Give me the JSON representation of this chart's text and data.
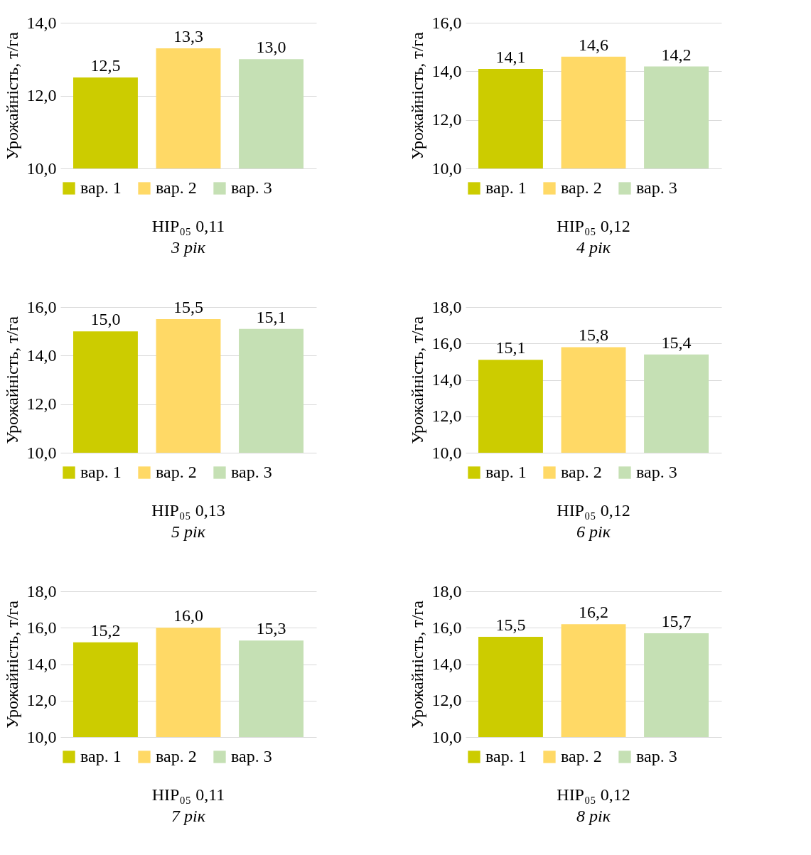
{
  "chart_data": [
    {
      "type": "bar",
      "title": "НІР₀₅ 0,11",
      "subtitle": "3 рік",
      "ylabel": "Урожайність, т/га",
      "categories": [
        null
      ],
      "ylim": [
        10,
        14
      ],
      "yticks": [
        {
          "value": 10,
          "label": "10,0"
        },
        {
          "value": 12,
          "label": "12,0"
        },
        {
          "value": 14,
          "label": "14,0"
        }
      ],
      "grid": "y",
      "legend": "bottom",
      "series": [
        {
          "name": "вар. 1",
          "color": "#cccc00",
          "values": [
            12.5
          ],
          "value_labels": [
            "12,5"
          ]
        },
        {
          "name": "вар. 2",
          "color": "#ffd966",
          "values": [
            13.3
          ],
          "value_labels": [
            "13,3"
          ]
        },
        {
          "name": "вар. 3",
          "color": "#c5e0b4",
          "values": [
            13.0
          ],
          "value_labels": [
            "13,0"
          ]
        }
      ]
    },
    {
      "type": "bar",
      "title": "НІР₀₅ 0,12",
      "subtitle": "4 рік",
      "ylabel": "Урожайність, т/га",
      "categories": [
        null
      ],
      "ylim": [
        10,
        16
      ],
      "yticks": [
        {
          "value": 10,
          "label": "10,0"
        },
        {
          "value": 12,
          "label": "12,0"
        },
        {
          "value": 14,
          "label": "14,0"
        },
        {
          "value": 16,
          "label": "16,0"
        }
      ],
      "grid": "y",
      "legend": "bottom",
      "series": [
        {
          "name": "вар. 1",
          "color": "#cccc00",
          "values": [
            14.1
          ],
          "value_labels": [
            "14,1"
          ]
        },
        {
          "name": "вар. 2",
          "color": "#ffd966",
          "values": [
            14.6
          ],
          "value_labels": [
            "14,6"
          ]
        },
        {
          "name": "вар. 3",
          "color": "#c5e0b4",
          "values": [
            14.2
          ],
          "value_labels": [
            "14,2"
          ]
        }
      ]
    },
    {
      "type": "bar",
      "title": "НІР₀₅ 0,13",
      "subtitle": "5 рік",
      "ylabel": "Урожайність, т/га",
      "categories": [
        null
      ],
      "ylim": [
        10,
        16
      ],
      "yticks": [
        {
          "value": 10,
          "label": "10,0"
        },
        {
          "value": 12,
          "label": "12,0"
        },
        {
          "value": 14,
          "label": "14,0"
        },
        {
          "value": 16,
          "label": "16,0"
        }
      ],
      "grid": "y",
      "legend": "bottom",
      "series": [
        {
          "name": "вар. 1",
          "color": "#cccc00",
          "values": [
            15.0
          ],
          "value_labels": [
            "15,0"
          ]
        },
        {
          "name": "вар. 2",
          "color": "#ffd966",
          "values": [
            15.5
          ],
          "value_labels": [
            "15,5"
          ]
        },
        {
          "name": "вар. 3",
          "color": "#c5e0b4",
          "values": [
            15.1
          ],
          "value_labels": [
            "15,1"
          ]
        }
      ]
    },
    {
      "type": "bar",
      "title": "НІР₀₅ 0,12",
      "subtitle": "6 рік",
      "ylabel": "Урожайність, т/га",
      "categories": [
        null
      ],
      "ylim": [
        10,
        18
      ],
      "yticks": [
        {
          "value": 10,
          "label": "10,0"
        },
        {
          "value": 12,
          "label": "12,0"
        },
        {
          "value": 14,
          "label": "14,0"
        },
        {
          "value": 16,
          "label": "16,0"
        },
        {
          "value": 18,
          "label": "18,0"
        }
      ],
      "grid": "y",
      "legend": "bottom",
      "series": [
        {
          "name": "вар. 1",
          "color": "#cccc00",
          "values": [
            15.1
          ],
          "value_labels": [
            "15,1"
          ]
        },
        {
          "name": "вар. 2",
          "color": "#ffd966",
          "values": [
            15.8
          ],
          "value_labels": [
            "15,8"
          ]
        },
        {
          "name": "вар. 3",
          "color": "#c5e0b4",
          "values": [
            15.4
          ],
          "value_labels": [
            "15,4"
          ]
        }
      ]
    },
    {
      "type": "bar",
      "title": "НІР₀₅ 0,11",
      "subtitle": "7 рік",
      "ylabel": "Урожайність, т/га",
      "categories": [
        null
      ],
      "ylim": [
        10,
        18
      ],
      "yticks": [
        {
          "value": 10,
          "label": "10,0"
        },
        {
          "value": 12,
          "label": "12,0"
        },
        {
          "value": 14,
          "label": "14,0"
        },
        {
          "value": 16,
          "label": "16,0"
        },
        {
          "value": 18,
          "label": "18,0"
        }
      ],
      "grid": "y",
      "legend": "bottom",
      "series": [
        {
          "name": "вар. 1",
          "color": "#cccc00",
          "values": [
            15.2
          ],
          "value_labels": [
            "15,2"
          ]
        },
        {
          "name": "вар. 2",
          "color": "#ffd966",
          "values": [
            16.0
          ],
          "value_labels": [
            "16,0"
          ]
        },
        {
          "name": "вар. 3",
          "color": "#c5e0b4",
          "values": [
            15.3
          ],
          "value_labels": [
            "15,3"
          ]
        }
      ]
    },
    {
      "type": "bar",
      "title": "НІР₀₅ 0,12",
      "subtitle": "8 рік",
      "ylabel": "Урожайність, т/га",
      "categories": [
        null
      ],
      "ylim": [
        10,
        18
      ],
      "yticks": [
        {
          "value": 10,
          "label": "10,0"
        },
        {
          "value": 12,
          "label": "12,0"
        },
        {
          "value": 14,
          "label": "14,0"
        },
        {
          "value": 16,
          "label": "16,0"
        },
        {
          "value": 18,
          "label": "18,0"
        }
      ],
      "grid": "y",
      "legend": "bottom",
      "series": [
        {
          "name": "вар. 1",
          "color": "#cccc00",
          "values": [
            15.5
          ],
          "value_labels": [
            "15,5"
          ]
        },
        {
          "name": "вар. 2",
          "color": "#ffd966",
          "values": [
            16.2
          ],
          "value_labels": [
            "16,2"
          ]
        },
        {
          "name": "вар. 3",
          "color": "#c5e0b4",
          "values": [
            15.7
          ],
          "value_labels": [
            "15,7"
          ]
        }
      ]
    }
  ]
}
